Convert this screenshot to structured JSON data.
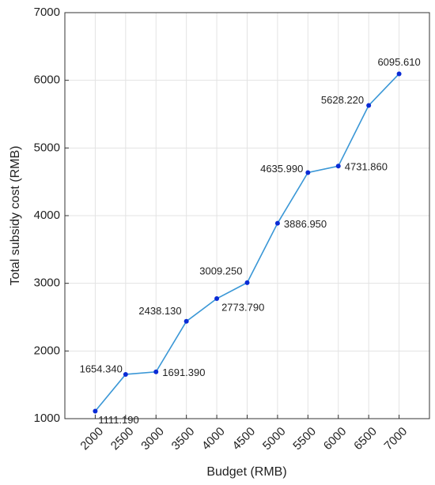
{
  "chart_data": {
    "type": "line",
    "x_label": "Budget (RMB)",
    "y_label": "Total subsidy cost (RMB)",
    "x": [
      2000,
      2500,
      3000,
      3500,
      4000,
      4500,
      5000,
      5500,
      6000,
      6500,
      7000
    ],
    "series": [
      {
        "name": "Total subsidy cost",
        "color": "#3a97d6",
        "marker_color": "#0a2bd6",
        "values": [
          1111.19,
          1654.34,
          1691.39,
          2438.13,
          2773.79,
          3009.25,
          3886.95,
          4635.99,
          4731.86,
          5628.22,
          6095.61
        ],
        "value_labels": [
          "1111.190",
          "1654.340",
          "1691.390",
          "2438.130",
          "2773.790",
          "3009.250",
          "3886.950",
          "4635.990",
          "4731.860",
          "5628.220",
          "6095.610"
        ]
      }
    ],
    "xlim": [
      1500,
      7500
    ],
    "xticks": [
      2000,
      2500,
      3000,
      3500,
      4000,
      4500,
      5000,
      5500,
      6000,
      6500,
      7000
    ],
    "ylim": [
      1000,
      7000
    ],
    "yticks": [
      1000,
      2000,
      3000,
      4000,
      5000,
      6000,
      7000
    ],
    "grid": true
  }
}
